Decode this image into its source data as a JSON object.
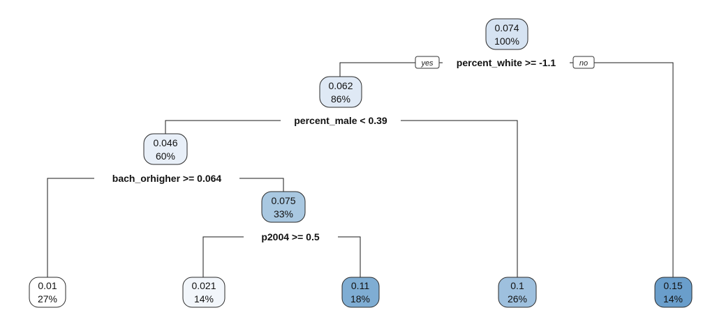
{
  "tree": {
    "nodes": [
      {
        "id": "n1",
        "value": "0.074",
        "percent": "100%",
        "fill": "#d6e3f2"
      },
      {
        "id": "n2",
        "value": "0.062",
        "percent": "86%",
        "fill": "#dfe9f5"
      },
      {
        "id": "n3",
        "value": "0.046",
        "percent": "60%",
        "fill": "#e8eff8"
      },
      {
        "id": "n4",
        "value": "0.075",
        "percent": "33%",
        "fill": "#a9c8e1"
      },
      {
        "id": "leaf1",
        "value": "0.01",
        "percent": "27%",
        "fill": "#ffffff"
      },
      {
        "id": "leaf2",
        "value": "0.021",
        "percent": "14%",
        "fill": "#f2f6fb"
      },
      {
        "id": "leaf3",
        "value": "0.11",
        "percent": "18%",
        "fill": "#7fadd3"
      },
      {
        "id": "leaf4",
        "value": "0.1",
        "percent": "26%",
        "fill": "#9ec0de"
      },
      {
        "id": "leaf5",
        "value": "0.15",
        "percent": "14%",
        "fill": "#6a9ecb"
      }
    ],
    "splits": [
      {
        "id": "s1",
        "label": "percent_white >= -1.1"
      },
      {
        "id": "s2",
        "label": "percent_male < 0.39"
      },
      {
        "id": "s3",
        "label": "bach_orhigher >= 0.064"
      },
      {
        "id": "s4",
        "label": "p2004 >= 0.5"
      }
    ],
    "yes_label": "yes",
    "no_label": "no"
  }
}
